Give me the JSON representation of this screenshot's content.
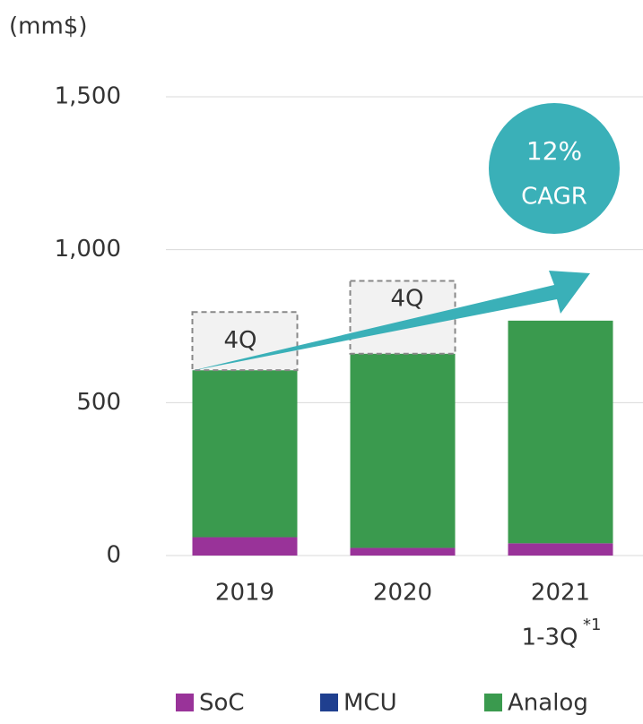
{
  "chart_data": {
    "type": "stacked_bar",
    "unit_label": "(mm$)",
    "categories": [
      "2019",
      "2020",
      "2021"
    ],
    "period_label": "1-3Q",
    "footnote_mark": "*1",
    "series": [
      {
        "name": "SoC",
        "color": "#993399",
        "values": [
          60,
          25,
          40
        ]
      },
      {
        "name": "MCU",
        "color": "#1f3f8f",
        "values": [
          0,
          0,
          0
        ]
      },
      {
        "name": "Analog",
        "color": "#3a9a4e",
        "values": [
          546,
          635,
          728
        ]
      }
    ],
    "estimate": {
      "label": "4Q",
      "values": [
        190,
        238,
        null
      ]
    },
    "annotation": {
      "value": "12%",
      "text": "CAGR"
    },
    "ylim": [
      0,
      1500
    ],
    "yticks": [
      0,
      500,
      {
        "value": 1000,
        "label": "1,000"
      },
      {
        "value": 1500,
        "label": "1,500"
      }
    ],
    "grid": true
  }
}
